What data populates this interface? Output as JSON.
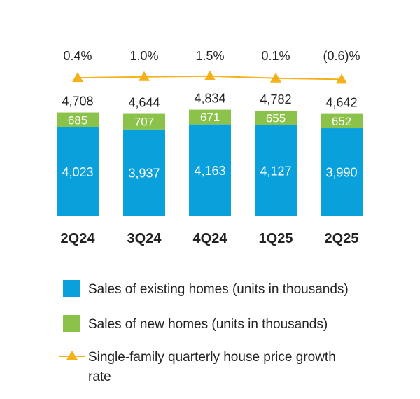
{
  "chart_data": {
    "type": "bar",
    "stacked": true,
    "categories": [
      "2Q24",
      "3Q24",
      "4Q24",
      "1Q25",
      "2Q25"
    ],
    "series": [
      {
        "name": "Sales of existing homes (units in thousands)",
        "color": "#0AA0DC",
        "values": [
          4023,
          3937,
          4163,
          4127,
          3990
        ],
        "labels": [
          "4,023",
          "3,937",
          "4,163",
          "4,127",
          "3,990"
        ]
      },
      {
        "name": "Sales of new homes (units in thousands)",
        "color": "#8BC34A",
        "values": [
          685,
          707,
          671,
          655,
          652
        ],
        "labels": [
          "685",
          "707",
          "671",
          "655",
          "652"
        ]
      }
    ],
    "totals": [
      "4,708",
      "4,644",
      "4,834",
      "4,782",
      "4,642"
    ],
    "line_series": {
      "name": "Single-family quarterly house price growth rate",
      "color": "#F5B11A",
      "values": [
        0.4,
        1.0,
        1.5,
        0.1,
        -0.6
      ],
      "labels": [
        "0.4%",
        "1.0%",
        "1.5%",
        "0.1%",
        "(0.6)%"
      ]
    },
    "legend": [
      {
        "label": "Sales of existing homes (units in thousands)",
        "marker": "square",
        "color": "#0AA0DC"
      },
      {
        "label": "Sales of new homes (units in thousands)",
        "marker": "square",
        "color": "#8BC34A"
      },
      {
        "label_lines": [
          "Single-family quarterly house price growth",
          "rate"
        ],
        "marker": "line-triangle",
        "color": "#F5B11A"
      }
    ],
    "legend_position": "bottom-left",
    "grid": false
  }
}
